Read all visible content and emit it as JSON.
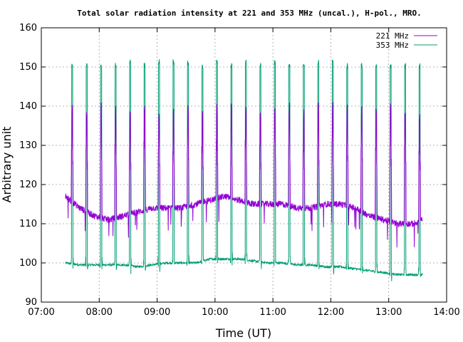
{
  "chart_data": {
    "type": "line",
    "title": "Total solar radiation intensity at 221 and 353 MHz (uncal.), H-pol., MRO.",
    "xlabel": "Time (UT)",
    "ylabel": "Arbitrary unit",
    "xlim": [
      "07:00",
      "14:00"
    ],
    "ylim": [
      90,
      160
    ],
    "x_ticks": [
      "07:00",
      "08:00",
      "09:00",
      "10:00",
      "11:00",
      "12:00",
      "13:00",
      "14:00"
    ],
    "y_ticks": [
      90,
      100,
      110,
      120,
      130,
      140,
      150,
      160
    ],
    "grid": true,
    "legend_position": "top-right",
    "calibration_times": [
      "07:32",
      "07:47",
      "08:02",
      "08:17",
      "08:32",
      "08:47",
      "09:02",
      "09:17",
      "09:32",
      "09:47",
      "10:02",
      "10:17",
      "10:32",
      "10:47",
      "11:02",
      "11:17",
      "11:32",
      "11:47",
      "12:02",
      "12:17",
      "12:32",
      "12:47",
      "13:02",
      "13:17",
      "13:32"
    ],
    "series": [
      {
        "name": "221 MHz",
        "color": "#9400d3",
        "time_range": [
          "07:25",
          "13:35"
        ],
        "baseline": [
          [
            "07:25",
            117
          ],
          [
            "07:40",
            114
          ],
          [
            "07:55",
            112
          ],
          [
            "08:10",
            111
          ],
          [
            "08:25",
            112
          ],
          [
            "08:40",
            113
          ],
          [
            "08:55",
            114
          ],
          [
            "09:10",
            114
          ],
          [
            "09:25",
            114
          ],
          [
            "09:40",
            115
          ],
          [
            "09:55",
            116
          ],
          [
            "10:10",
            117
          ],
          [
            "10:25",
            116
          ],
          [
            "10:40",
            115
          ],
          [
            "10:55",
            115
          ],
          [
            "11:10",
            115
          ],
          [
            "11:25",
            114
          ],
          [
            "11:40",
            114
          ],
          [
            "11:55",
            115
          ],
          [
            "12:10",
            115
          ],
          [
            "12:25",
            114
          ],
          [
            "12:40",
            112
          ],
          [
            "12:55",
            111
          ],
          [
            "13:10",
            110
          ],
          [
            "13:25",
            110
          ],
          [
            "13:35",
            111
          ]
        ],
        "spike_peaks": [
          141,
          140,
          141,
          140,
          140,
          141,
          140,
          140,
          141,
          140,
          141,
          141,
          141,
          140,
          141,
          141,
          140,
          141,
          141,
          141,
          141,
          140,
          141,
          140,
          140
        ],
        "spike_mid": [
          130,
          129,
          130,
          129,
          129,
          130,
          129,
          129,
          130,
          129,
          130,
          130,
          130,
          129,
          130,
          130,
          129,
          130,
          130,
          130,
          130,
          129,
          130,
          129,
          129
        ]
      },
      {
        "name": "353 MHz",
        "color": "#009e73",
        "time_range": [
          "07:25",
          "13:35"
        ],
        "baseline": [
          [
            "07:25",
            100
          ],
          [
            "07:40",
            99.5
          ],
          [
            "07:55",
            99.5
          ],
          [
            "08:10",
            99.5
          ],
          [
            "08:25",
            99.5
          ],
          [
            "08:40",
            99
          ],
          [
            "08:55",
            99.5
          ],
          [
            "09:10",
            100
          ],
          [
            "09:25",
            100
          ],
          [
            "09:40",
            100
          ],
          [
            "09:55",
            101
          ],
          [
            "10:10",
            101
          ],
          [
            "10:25",
            101
          ],
          [
            "10:40",
            100.5
          ],
          [
            "10:55",
            100
          ],
          [
            "11:10",
            100
          ],
          [
            "11:25",
            99.5
          ],
          [
            "11:40",
            99.5
          ],
          [
            "11:55",
            99
          ],
          [
            "12:10",
            99
          ],
          [
            "12:25",
            98.5
          ],
          [
            "12:40",
            98
          ],
          [
            "12:55",
            97.5
          ],
          [
            "13:10",
            97
          ],
          [
            "13:25",
            97
          ],
          [
            "13:35",
            97
          ]
        ],
        "spike_peaks": [
          151,
          151,
          151,
          151,
          152,
          151,
          152,
          152,
          152,
          151,
          152,
          151,
          152,
          151,
          152,
          151,
          151,
          152,
          152,
          151,
          151,
          151,
          151,
          151,
          151
        ]
      }
    ]
  }
}
